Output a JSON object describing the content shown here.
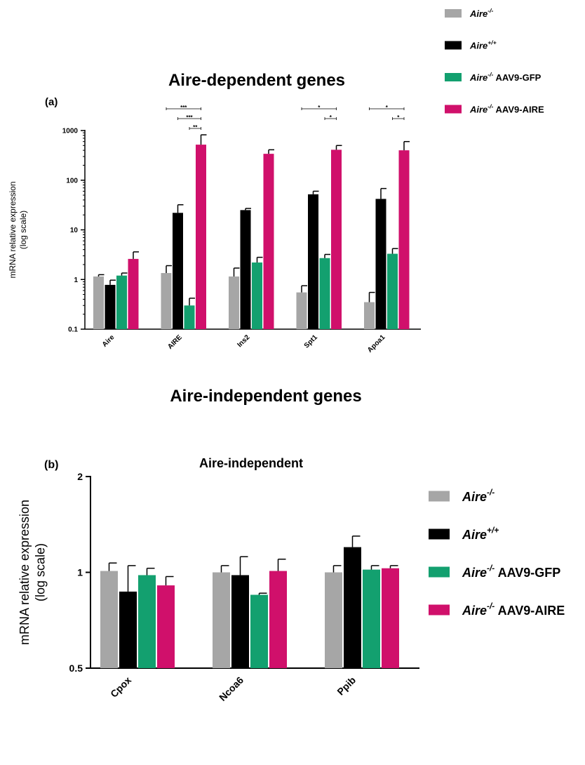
{
  "headings": {
    "dependent": "Aire-dependent genes",
    "independent": "Aire-independent genes"
  },
  "legend_series": [
    {
      "italic": "Aire",
      "sup": "-/-",
      "suffix": ""
    },
    {
      "italic": "Aire",
      "sup": "+/+",
      "suffix": ""
    },
    {
      "italic": "Aire",
      "sup": "-/-",
      "suffix": " AAV9-GFP"
    },
    {
      "italic": "Aire",
      "sup": "-/-",
      "suffix": " AAV9-AIRE"
    }
  ],
  "colors": {
    "series": [
      "#a6a6a6",
      "#000000",
      "#13a06f",
      "#d0106b"
    ],
    "axis": "#000000"
  },
  "chart_data": [
    {
      "type": "bar",
      "panel_label": "(a)",
      "title": "",
      "ylabel": "mRNA relative expression",
      "ylabel2": "(log scale)",
      "xlabel": "",
      "yscale": "log",
      "ylim": [
        0.1,
        1000
      ],
      "yticks": [
        "0.1",
        "1",
        "10",
        "100",
        "1000"
      ],
      "grid": false,
      "legend": "top-right",
      "categories": [
        "Aire",
        "AIRE",
        "Ins2",
        "Spt1",
        "Apoa1"
      ],
      "series": [
        {
          "values": [
            1.15,
            1.35,
            1.15,
            0.55,
            0.35
          ],
          "errors": [
            1.25,
            1.9,
            1.7,
            0.75,
            0.55
          ]
        },
        {
          "values": [
            0.78,
            22,
            25,
            52,
            42
          ],
          "errors": [
            0.97,
            32,
            27,
            60,
            68
          ]
        },
        {
          "values": [
            1.2,
            0.3,
            2.2,
            2.7,
            3.3
          ],
          "errors": [
            1.35,
            0.42,
            2.8,
            3.2,
            4.2
          ]
        },
        {
          "values": [
            2.6,
            520,
            340,
            410,
            400
          ],
          "errors": [
            3.6,
            820,
            410,
            500,
            600
          ]
        }
      ],
      "significance": [
        {
          "label": "***",
          "category": 1,
          "from": 0,
          "to": 3,
          "row": 0
        },
        {
          "label": "***",
          "category": 1,
          "from": 1,
          "to": 3,
          "row": 1
        },
        {
          "label": "**",
          "category": 1,
          "from": 2,
          "to": 3,
          "row": 2
        },
        {
          "label": "*",
          "category": 3,
          "from": 0,
          "to": 3,
          "row": 0
        },
        {
          "label": "*",
          "category": 3,
          "from": 2,
          "to": 3,
          "row": 1
        },
        {
          "label": "*",
          "category": 4,
          "from": 0,
          "to": 3,
          "row": 0
        },
        {
          "label": "*",
          "category": 4,
          "from": 2,
          "to": 3,
          "row": 1
        }
      ]
    },
    {
      "type": "bar",
      "panel_label": "(b)",
      "title": "Aire-independent",
      "ylabel": "mRNA relative expression",
      "ylabel2": "(log scale)",
      "xlabel": "",
      "yscale": "log",
      "ylim": [
        0.5,
        2
      ],
      "yticks": [
        "0.5",
        "1",
        "2"
      ],
      "grid": false,
      "legend": "right",
      "categories": [
        "Cpox",
        "Ncoa6",
        "Ppib"
      ],
      "series": [
        {
          "values": [
            1.01,
            1.0,
            1.0
          ],
          "errors": [
            1.07,
            1.05,
            1.05
          ]
        },
        {
          "values": [
            0.87,
            0.98,
            1.2
          ],
          "errors": [
            1.05,
            1.12,
            1.3
          ]
        },
        {
          "values": [
            0.98,
            0.85,
            1.02
          ],
          "errors": [
            1.03,
            0.86,
            1.05
          ]
        },
        {
          "values": [
            0.91,
            1.01,
            1.03
          ],
          "errors": [
            0.97,
            1.1,
            1.05
          ]
        }
      ]
    }
  ]
}
